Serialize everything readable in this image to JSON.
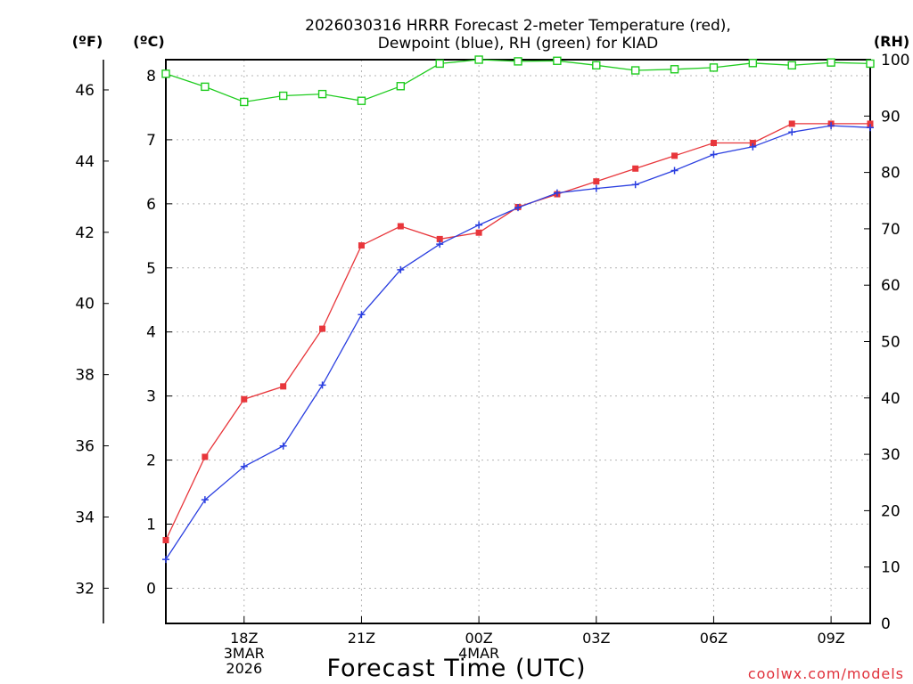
{
  "chart_data": {
    "type": "line",
    "title_line1": "2026030316 HRRR Forecast 2-meter Temperature (red),",
    "title_line2": "Dewpoint (blue), RH (green) for KIAD",
    "xlabel": "Forecast Time (UTC)",
    "credit": "coolwx.com/models",
    "left_unit_f": "(ºF)",
    "left_unit_c": "(ºC)",
    "right_unit": "(RH)",
    "x_hours": [
      16,
      17,
      18,
      19,
      20,
      21,
      22,
      23,
      24,
      25,
      26,
      27,
      28,
      29,
      30,
      31,
      32,
      33,
      34
    ],
    "xlim": [
      16,
      34
    ],
    "celsius_axis": {
      "ylim": [
        -0.55,
        8.25
      ],
      "ticks": [
        0,
        1,
        2,
        3,
        4,
        5,
        6,
        7,
        8
      ]
    },
    "fahrenheit_ticks": [
      32,
      34,
      36,
      38,
      40,
      42,
      44,
      46
    ],
    "rh_axis": {
      "ylim": [
        0,
        100
      ],
      "ticks": [
        0,
        10,
        20,
        30,
        40,
        50,
        60,
        70,
        80,
        90,
        100
      ]
    },
    "x_ticks": [
      {
        "hour": 18,
        "lines": [
          "18Z",
          "3MAR",
          "2026"
        ]
      },
      {
        "hour": 21,
        "lines": [
          "21Z"
        ]
      },
      {
        "hour": 24,
        "lines": [
          "00Z",
          "4MAR"
        ]
      },
      {
        "hour": 27,
        "lines": [
          "03Z"
        ]
      },
      {
        "hour": 30,
        "lines": [
          "06Z"
        ]
      },
      {
        "hour": 33,
        "lines": [
          "09Z"
        ]
      }
    ],
    "series": [
      {
        "name": "Temperature",
        "unit": "°C",
        "color": "#e8363b",
        "marker": "filled-square",
        "values": [
          0.75,
          2.05,
          2.95,
          3.15,
          4.05,
          5.35,
          5.65,
          5.45,
          5.55,
          5.95,
          6.15,
          6.35,
          6.55,
          6.75,
          6.95,
          6.95,
          7.25,
          7.25,
          7.25
        ]
      },
      {
        "name": "Dewpoint",
        "unit": "°C",
        "color": "#2b3fe0",
        "marker": "plus",
        "values": [
          0.45,
          1.38,
          1.9,
          2.22,
          3.17,
          4.27,
          4.97,
          5.37,
          5.67,
          5.94,
          6.17,
          6.24,
          6.3,
          6.52,
          6.77,
          6.89,
          7.12,
          7.22,
          7.19
        ]
      },
      {
        "name": "RH",
        "unit": "%",
        "color": "#1fcc1f",
        "marker": "open-square",
        "values": [
          97.5,
          95.2,
          92.5,
          93.6,
          93.9,
          92.7,
          95.3,
          99.3,
          100.0,
          99.7,
          99.8,
          99.0,
          98.1,
          98.3,
          98.6,
          99.4,
          99.0,
          99.5,
          99.3
        ]
      }
    ]
  }
}
